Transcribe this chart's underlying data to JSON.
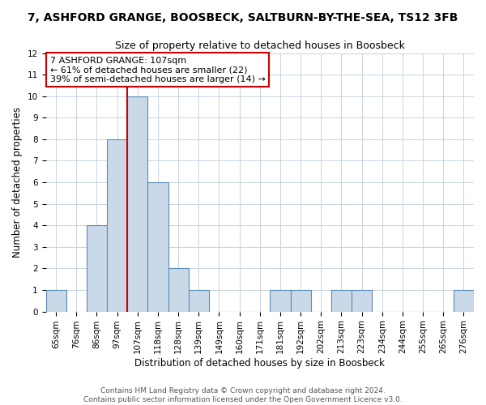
{
  "title": "7, ASHFORD GRANGE, BOOSBECK, SALTBURN-BY-THE-SEA, TS12 3FB",
  "subtitle": "Size of property relative to detached houses in Boosbeck",
  "xlabel": "Distribution of detached houses by size in Boosbeck",
  "ylabel": "Number of detached properties",
  "bins": [
    "65sqm",
    "76sqm",
    "86sqm",
    "97sqm",
    "107sqm",
    "118sqm",
    "128sqm",
    "139sqm",
    "149sqm",
    "160sqm",
    "171sqm",
    "181sqm",
    "192sqm",
    "202sqm",
    "213sqm",
    "223sqm",
    "234sqm",
    "244sqm",
    "255sqm",
    "265sqm",
    "276sqm"
  ],
  "values": [
    1,
    0,
    4,
    8,
    10,
    6,
    2,
    1,
    0,
    0,
    0,
    1,
    1,
    0,
    1,
    1,
    0,
    0,
    0,
    0,
    1
  ],
  "bar_color": "#c9d9e8",
  "bar_edge_color": "#5a8ab5",
  "reference_line_x": 3.5,
  "annotation_title": "7 ASHFORD GRANGE: 107sqm",
  "annotation_line1": "← 61% of detached houses are smaller (22)",
  "annotation_line2": "39% of semi-detached houses are larger (14) →",
  "annotation_box_color": "#ffffff",
  "annotation_box_edge_color": "#cc0000",
  "ref_line_color": "#cc0000",
  "ylim": [
    0,
    12
  ],
  "yticks": [
    0,
    1,
    2,
    3,
    4,
    5,
    6,
    7,
    8,
    9,
    10,
    11,
    12
  ],
  "footer1": "Contains HM Land Registry data © Crown copyright and database right 2024.",
  "footer2": "Contains public sector information licensed under the Open Government Licence v3.0.",
  "grid_color": "#c8d4e0",
  "title_fontsize": 10,
  "subtitle_fontsize": 9,
  "tick_fontsize": 7.5,
  "ylabel_fontsize": 8.5,
  "xlabel_fontsize": 8.5,
  "annotation_fontsize": 8,
  "footer_fontsize": 6.5
}
